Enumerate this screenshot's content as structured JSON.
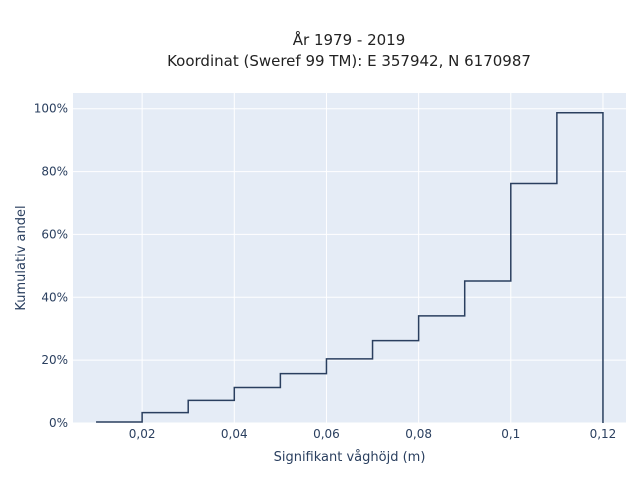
{
  "chart_data": {
    "type": "line",
    "step": "post",
    "title_line1": "År 1979 - 2019",
    "title_line2": "Koordinat (Sweref 99 TM): E 357942, N 6170987",
    "xlabel": "Signifikant våghöjd (m)",
    "ylabel": "Kumulativ andel",
    "xlim": [
      0.005,
      0.125
    ],
    "ylim": [
      0,
      1.05
    ],
    "x_ticks": [
      {
        "value": 0.02,
        "label": "0,02"
      },
      {
        "value": 0.04,
        "label": "0,04"
      },
      {
        "value": 0.06,
        "label": "0,06"
      },
      {
        "value": 0.08,
        "label": "0,08"
      },
      {
        "value": 0.1,
        "label": "0,1"
      },
      {
        "value": 0.12,
        "label": "0,12"
      }
    ],
    "y_ticks": [
      {
        "value": 0,
        "label": "0%"
      },
      {
        "value": 0.2,
        "label": "20%"
      },
      {
        "value": 0.4,
        "label": "40%"
      },
      {
        "value": 0.6,
        "label": "60%"
      },
      {
        "value": 0.8,
        "label": "80%"
      },
      {
        "value": 1.0,
        "label": "100%"
      }
    ],
    "grid": true,
    "colors": {
      "background": "#e5ecf6",
      "line": "#2a3f5f",
      "grid": "#ffffff"
    },
    "x": [
      0.01,
      0.02,
      0.03,
      0.04,
      0.05,
      0.06,
      0.07,
      0.08,
      0.09,
      0.1,
      0.11,
      0.12,
      0.12
    ],
    "y": [
      0.003,
      0.033,
      0.072,
      0.113,
      0.157,
      0.204,
      0.262,
      0.341,
      0.452,
      0.762,
      0.987,
      0.987,
      0.0
    ]
  }
}
